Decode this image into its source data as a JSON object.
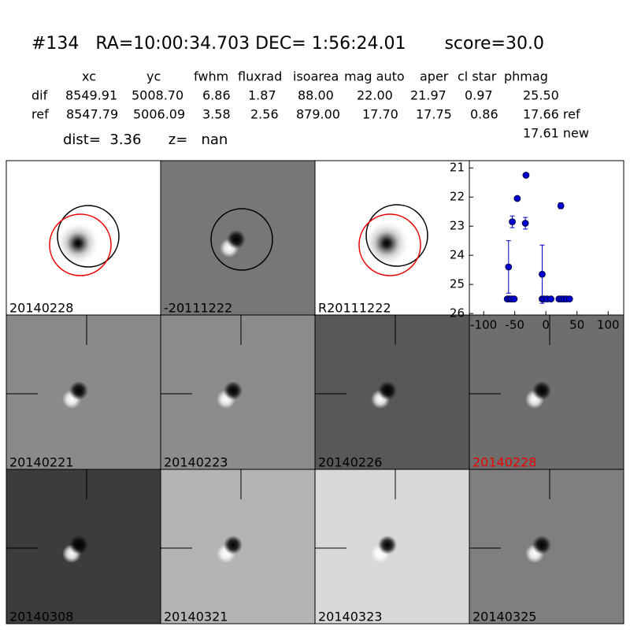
{
  "header": {
    "title": "#134   RA=10:00:34.703 DEC= 1:56:24.01       score=30.0",
    "distance": "dist=  3.36      z=   nan"
  },
  "table": {
    "columns": [
      "xc",
      "yc",
      "fwhm",
      "fluxrad",
      "isoarea",
      "mag auto",
      "aper",
      "cl star",
      "phmag"
    ],
    "rows": [
      [
        "dif",
        "8549.91",
        "5008.70",
        "6.86",
        "1.87",
        "88.00",
        "22.00",
        "21.97",
        "0.97",
        "25.50"
      ],
      [
        "ref",
        "8547.79",
        "5006.09",
        "3.58",
        "2.56",
        "879.00",
        "17.70",
        "17.75",
        "0.86",
        "17.66 ref"
      ]
    ],
    "extra": "17.61 new"
  },
  "panels": [
    "20140228",
    "-20111222",
    "R20111222",
    "20140221",
    "20140223",
    "20140226",
    "20140228",
    "20140308",
    "20140321",
    "20140323",
    "20140325"
  ],
  "chart_data": {
    "type": "scatter",
    "color": "#0000cc",
    "x": [
      -62,
      -58,
      -55,
      -51,
      -60,
      -54,
      -46,
      -32,
      -33,
      -6,
      -6,
      -3,
      2,
      8,
      24,
      21,
      25,
      29,
      33,
      38
    ],
    "series": [
      {
        "values": [
          25.5,
          25.5,
          25.5,
          25.5,
          24.4,
          22.85,
          22.05,
          21.25,
          22.9,
          24.65,
          25.5,
          25.5,
          25.5,
          25.5,
          22.3,
          25.5,
          25.5,
          25.5,
          25.5,
          25.5
        ],
        "errors": [
          null,
          null,
          null,
          null,
          0.9,
          0.2,
          0.05,
          0.03,
          0.2,
          1.0,
          null,
          null,
          null,
          null,
          0.1,
          null,
          null,
          null,
          null,
          null
        ]
      }
    ],
    "xlim": [
      -123,
      125
    ],
    "ylim": [
      26.05,
      20.75
    ],
    "xticks": [
      -100,
      -50,
      0,
      50,
      100
    ],
    "yticks": [
      21,
      22,
      23,
      24,
      25,
      26
    ]
  }
}
